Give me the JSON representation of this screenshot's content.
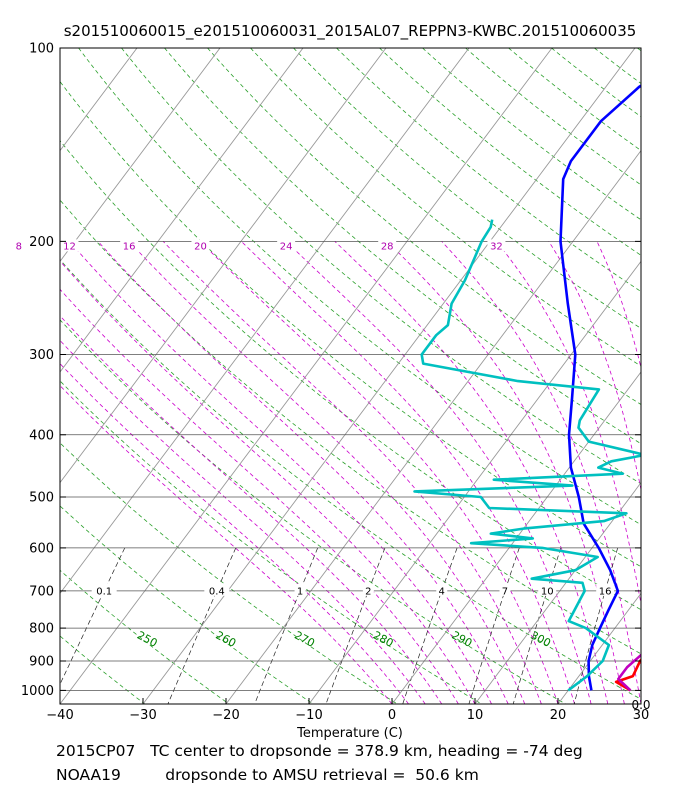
{
  "chart_data": {
    "type": "line",
    "title": "s201510060015_e201510060031_2015AL07_REPPN3-KWBC.201510060035",
    "xlabel": "Temperature (C)",
    "ylabel": "",
    "xlim": [
      -40,
      30
    ],
    "ylim": [
      1050,
      100
    ],
    "skew_note": "skew-T log-p diagram, isotherms tilted",
    "x_ticks": [
      -40,
      -30,
      -20,
      -10,
      0,
      10,
      20,
      30
    ],
    "x_tick_labels": [
      "−40",
      "−30",
      "−20",
      "−10",
      "0",
      "10",
      "20",
      "30"
    ],
    "p_ticks": [
      100,
      200,
      300,
      400,
      500,
      600,
      700,
      800,
      900,
      1000
    ],
    "mixing_ratio_labels": [
      "0.1",
      "0.4",
      "1",
      "2",
      "4",
      "7",
      "10",
      "16"
    ],
    "dry_adiabat_labels": [
      "250",
      "260",
      "270",
      "280",
      "290",
      "300"
    ],
    "moist_adiabat_labels": [
      "8",
      "12",
      "16",
      "20",
      "24",
      "28",
      "32"
    ],
    "corner_label": "0.0",
    "series": [
      {
        "name": "temperature_red",
        "color": "#ff0000",
        "points": [
          [
            1000,
            27.5
          ],
          [
            970,
            25
          ],
          [
            950,
            26.5
          ],
          [
            900,
            26
          ],
          [
            850,
            26.2
          ],
          [
            800,
            27
          ],
          [
            750,
            26
          ],
          [
            700,
            24.5
          ],
          [
            650,
            23.5
          ],
          [
            600,
            22
          ],
          [
            550,
            22.2
          ],
          [
            500,
            21.5
          ],
          [
            450,
            20.5
          ],
          [
            400,
            18.5
          ],
          [
            350,
            14.5
          ],
          [
            300,
            9.5
          ],
          [
            250,
            3
          ],
          [
            200,
            -3.5
          ],
          [
            170,
            -7
          ],
          [
            150,
            -8.5
          ],
          [
            120,
            -8.5
          ],
          [
            100,
            -6
          ]
        ]
      },
      {
        "name": "temperature_blue",
        "color": "#0000ff",
        "points": [
          [
            1000,
            22.8
          ],
          [
            950,
            21.2
          ],
          [
            900,
            19.8
          ],
          [
            850,
            18.8
          ],
          [
            800,
            18.2
          ],
          [
            750,
            17.6
          ],
          [
            700,
            17
          ],
          [
            650,
            14.2
          ],
          [
            600,
            10.8
          ],
          [
            550,
            6.8
          ],
          [
            500,
            3.8
          ],
          [
            450,
            0.2
          ],
          [
            400,
            -3
          ],
          [
            350,
            -6
          ],
          [
            300,
            -9.5
          ],
          [
            250,
            -15
          ],
          [
            200,
            -21.5
          ],
          [
            160,
            -26.8
          ],
          [
            150,
            -27.5
          ],
          [
            130,
            -27.5
          ],
          [
            115,
            -26
          ],
          [
            100,
            -22.5
          ]
        ]
      },
      {
        "name": "temperature_magenta",
        "color": "#c000c0",
        "points": [
          [
            1000,
            27.5
          ],
          [
            960,
            25
          ],
          [
            920,
            25
          ],
          [
            880,
            25.6
          ],
          [
            850,
            25.4
          ],
          [
            820,
            27.2
          ],
          [
            800,
            27.5
          ],
          [
            750,
            27.2
          ],
          [
            700,
            26.2
          ],
          [
            670,
            26.4
          ],
          [
            640,
            25
          ],
          [
            600,
            26.5
          ],
          [
            580,
            27.5
          ],
          [
            560,
            26.5
          ],
          [
            530,
            24.5
          ],
          [
            500,
            25
          ],
          [
            470,
            24.2
          ],
          [
            440,
            21.5
          ],
          [
            400,
            18
          ],
          [
            350,
            14.6
          ],
          [
            330,
            13
          ],
          [
            300,
            9.5
          ],
          [
            250,
            3
          ],
          [
            200,
            -4.5
          ],
          [
            160,
            -10
          ]
        ]
      },
      {
        "name": "dewpoint_cyan",
        "color": "#00c0c0",
        "points": [
          [
            1000,
            20
          ],
          [
            950,
            21
          ],
          [
            900,
            21.5
          ],
          [
            850,
            20.8
          ],
          [
            800,
            16.5
          ],
          [
            780,
            13.8
          ],
          [
            750,
            13.5
          ],
          [
            700,
            13
          ],
          [
            680,
            12
          ],
          [
            670,
            5.5
          ],
          [
            650,
            10
          ],
          [
            620,
            11.5
          ],
          [
            600,
            4
          ],
          [
            590,
            -5
          ],
          [
            580,
            2
          ],
          [
            570,
            -3.5
          ],
          [
            560,
            0
          ],
          [
            545,
            9
          ],
          [
            530,
            11
          ],
          [
            520,
            -6
          ],
          [
            500,
            -8
          ],
          [
            490,
            -16.5
          ],
          [
            480,
            2
          ],
          [
            470,
            -8
          ],
          [
            460,
            7
          ],
          [
            450,
            3.5
          ],
          [
            440,
            4.5
          ],
          [
            430,
            8
          ],
          [
            410,
            0
          ],
          [
            390,
            -2.5
          ],
          [
            380,
            -3
          ],
          [
            340,
            -3.5
          ],
          [
            330,
            -14
          ],
          [
            310,
            -27
          ],
          [
            300,
            -28
          ],
          [
            280,
            -28
          ],
          [
            270,
            -27.5
          ],
          [
            250,
            -29
          ],
          [
            230,
            -29.5
          ],
          [
            200,
            -31
          ],
          [
            190,
            -31.2
          ],
          [
            185,
            -31.7
          ]
        ]
      }
    ]
  },
  "footer": {
    "line1": "2015CP07   TC center to dropsonde = 378.9 km, heading = -74 deg",
    "line2": "NOAA19         dropsonde to AMSU retrieval =  50.6 km"
  }
}
